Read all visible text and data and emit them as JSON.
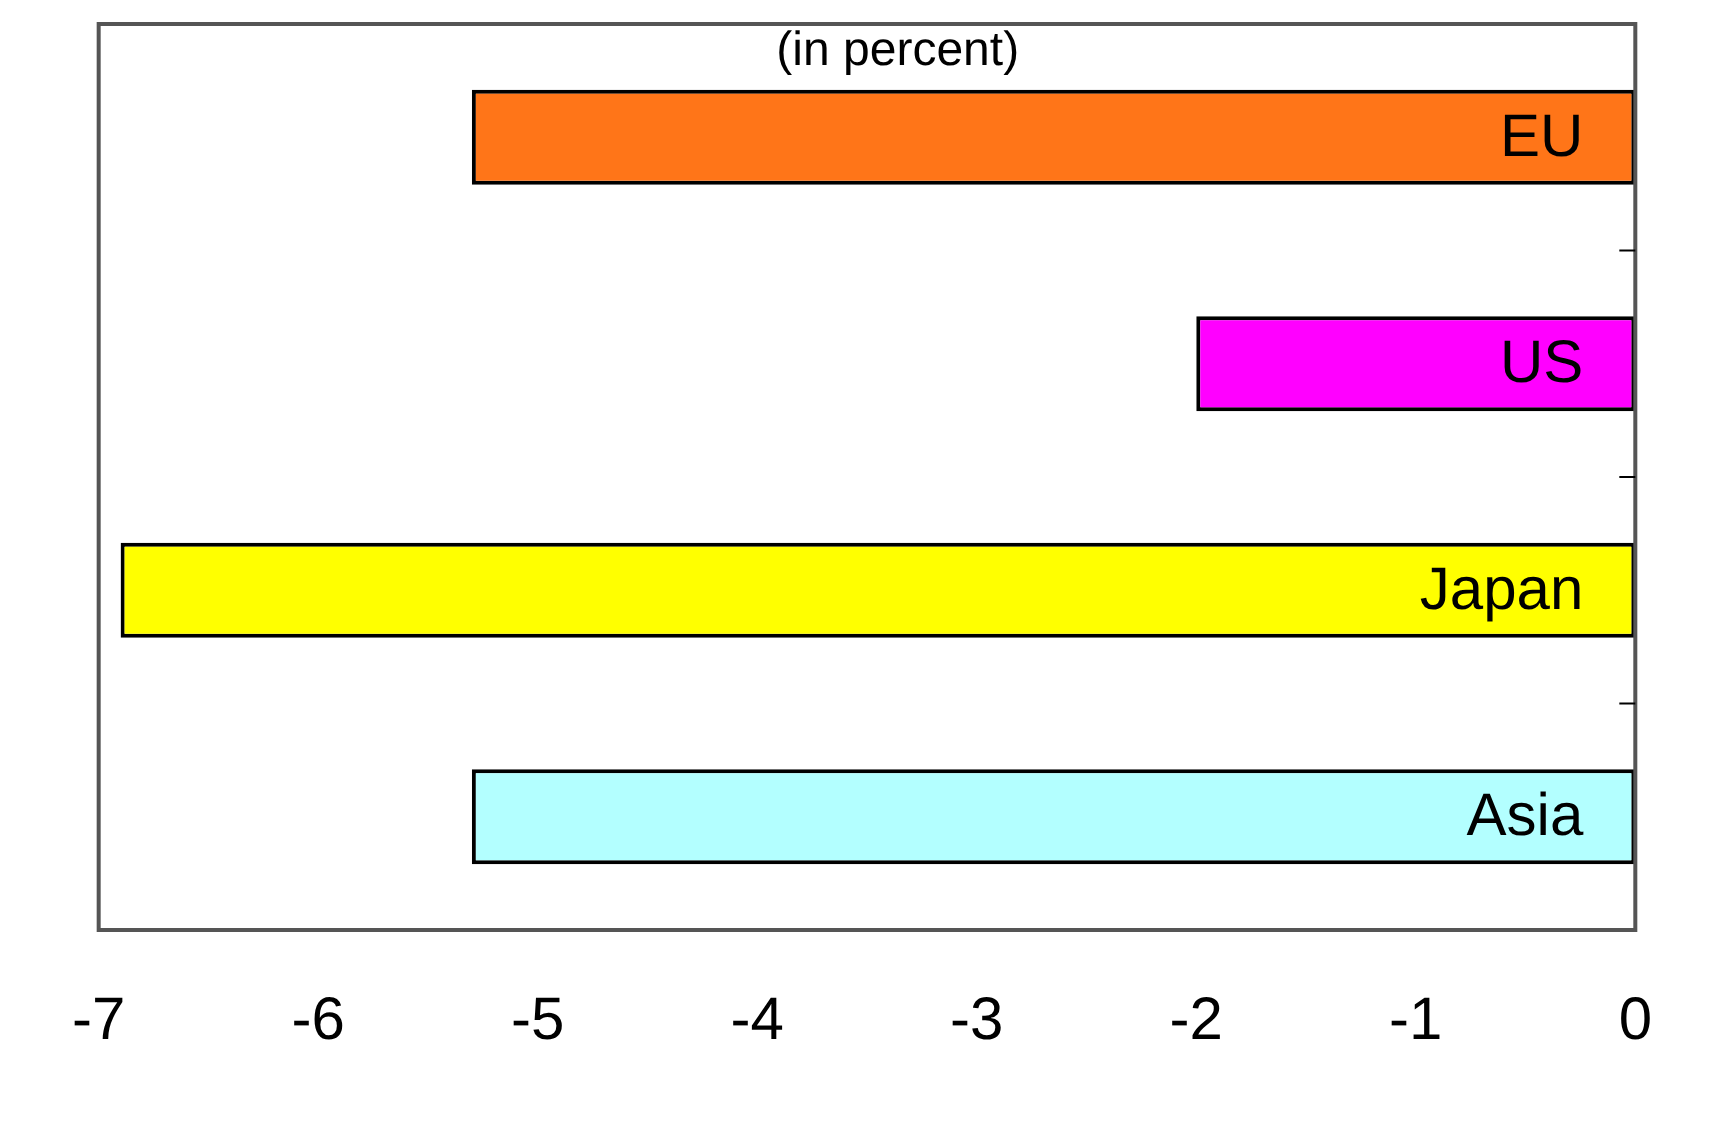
{
  "chart_data": {
    "type": "bar",
    "orientation": "horizontal",
    "title": "(in percent)",
    "categories": [
      "EU",
      "US",
      "Japan",
      "Asia"
    ],
    "values": [
      -5.3,
      -2.0,
      -6.9,
      -5.3
    ],
    "colors": [
      "#ff7518",
      "#ff00ff",
      "#ffff00",
      "#b3ffff"
    ],
    "xlim": [
      -7,
      0
    ],
    "xticks": [
      -7,
      -6,
      -5,
      -4,
      -3,
      -2,
      -1,
      0
    ],
    "grid": false,
    "legend": false
  }
}
